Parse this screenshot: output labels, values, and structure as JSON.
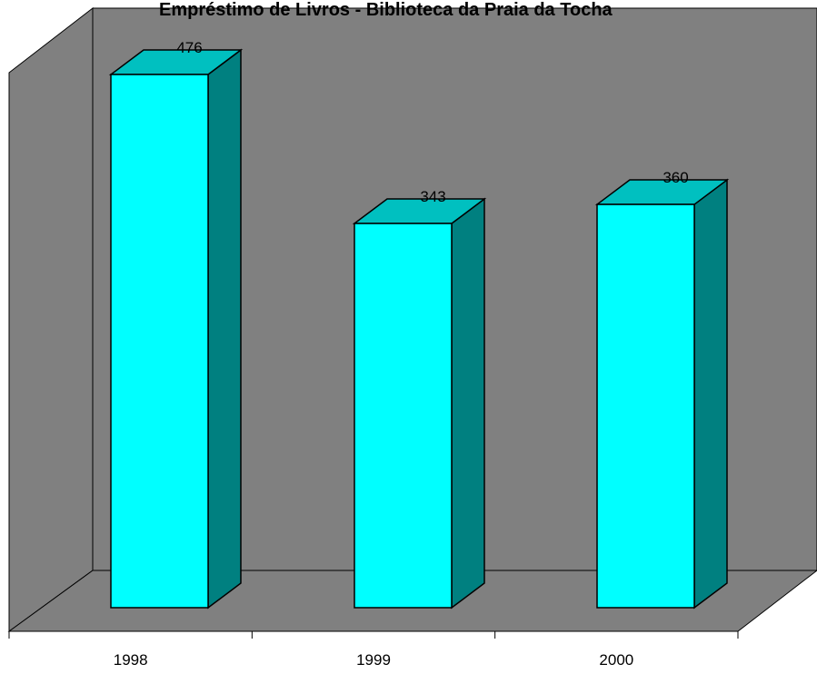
{
  "chart_data": {
    "type": "bar",
    "title": "Empréstimo de Livros -  Biblioteca da Praia da Tocha",
    "categories": [
      "1998",
      "1999",
      "2000"
    ],
    "values": [
      476,
      343,
      360
    ],
    "data_labels": [
      "476",
      "343",
      "360"
    ],
    "xlabel": "",
    "ylabel": "",
    "ylim": [
      0,
      500
    ],
    "grid": false,
    "legend": "none",
    "style": "3d-column",
    "colors": {
      "bar_front": "#00FFFF",
      "bar_side": "#008080",
      "bar_top": "#00C0C0",
      "wall": "#808080",
      "floor": "#808080",
      "outline": "#000000"
    }
  }
}
